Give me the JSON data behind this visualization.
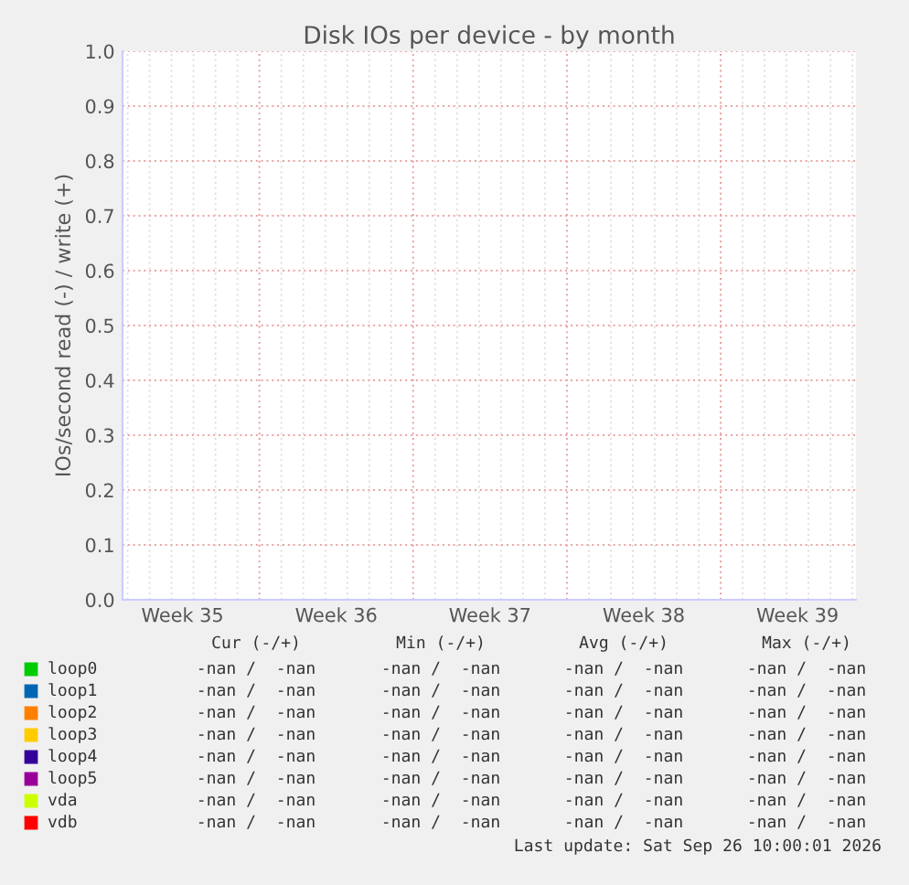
{
  "chart_data": {
    "type": "line",
    "title": "Disk IOs per device - by month",
    "ylabel": "IOs/second read (-) / write (+)",
    "categories": [
      "Week 35",
      "Week 36",
      "Week 37",
      "Week 38",
      "Week 39"
    ],
    "ylim": [
      0,
      1.0
    ],
    "yticks": [
      {
        "value": 0,
        "label": "0.0"
      },
      {
        "value": 0.1,
        "label": "0.1"
      },
      {
        "value": 0.2,
        "label": "0.2"
      },
      {
        "value": 0.3,
        "label": "0.3"
      },
      {
        "value": 0.4,
        "label": "0.4"
      },
      {
        "value": 0.5,
        "label": "0.5"
      },
      {
        "value": 0.6,
        "label": "0.6"
      },
      {
        "value": 0.7,
        "label": "0.7"
      },
      {
        "value": 0.8,
        "label": "0.8"
      },
      {
        "value": 0.9,
        "label": "0.9"
      },
      {
        "value": 1.0,
        "label": "1.0"
      }
    ],
    "grid": true,
    "legend": "bottom",
    "series": [
      {
        "name": "loop0",
        "color": "#00cc00",
        "values": [
          null,
          null,
          null,
          null,
          null
        ]
      },
      {
        "name": "loop1",
        "color": "#0066b3",
        "values": [
          null,
          null,
          null,
          null,
          null
        ]
      },
      {
        "name": "loop2",
        "color": "#ff8000",
        "values": [
          null,
          null,
          null,
          null,
          null
        ]
      },
      {
        "name": "loop3",
        "color": "#ffcc00",
        "values": [
          null,
          null,
          null,
          null,
          null
        ]
      },
      {
        "name": "loop4",
        "color": "#330099",
        "values": [
          null,
          null,
          null,
          null,
          null
        ]
      },
      {
        "name": "loop5",
        "color": "#990099",
        "values": [
          null,
          null,
          null,
          null,
          null
        ]
      },
      {
        "name": "vda",
        "color": "#ccff00",
        "values": [
          null,
          null,
          null,
          null,
          null
        ]
      },
      {
        "name": "vdb",
        "color": "#ff0000",
        "values": [
          null,
          null,
          null,
          null,
          null
        ]
      }
    ],
    "annotations": [
      "Cur (-/+)",
      "Min (-/+)",
      "Avg (-/+)",
      "Max (-/+)",
      "-nan /  -nan",
      "-nan /  -nan",
      "-nan /  -nan",
      "-nan /  -nan",
      "-nan /  -nan",
      "-nan /  -nan",
      "-nan /  -nan",
      "-nan /  -nan",
      "-nan /  -nan",
      "-nan /  -nan",
      "-nan /  -nan",
      "-nan /  -nan",
      "-nan /  -nan",
      "-nan /  -nan",
      "-nan /  -nan",
      "-nan /  -nan",
      "-nan /  -nan",
      "-nan /  -nan",
      "-nan /  -nan",
      "-nan /  -nan",
      "-nan /  -nan",
      "-nan /  -nan",
      "-nan /  -nan",
      "-nan /  -nan",
      "-nan /  -nan",
      "-nan /  -nan",
      "-nan /  -nan",
      "-nan /  -nan",
      "-nan /  -nan",
      "-nan /  -nan",
      "-nan /  -nan",
      "-nan /  -nan",
      "Last update: Sat Sep 26 10:00:01 2026"
    ]
  }
}
